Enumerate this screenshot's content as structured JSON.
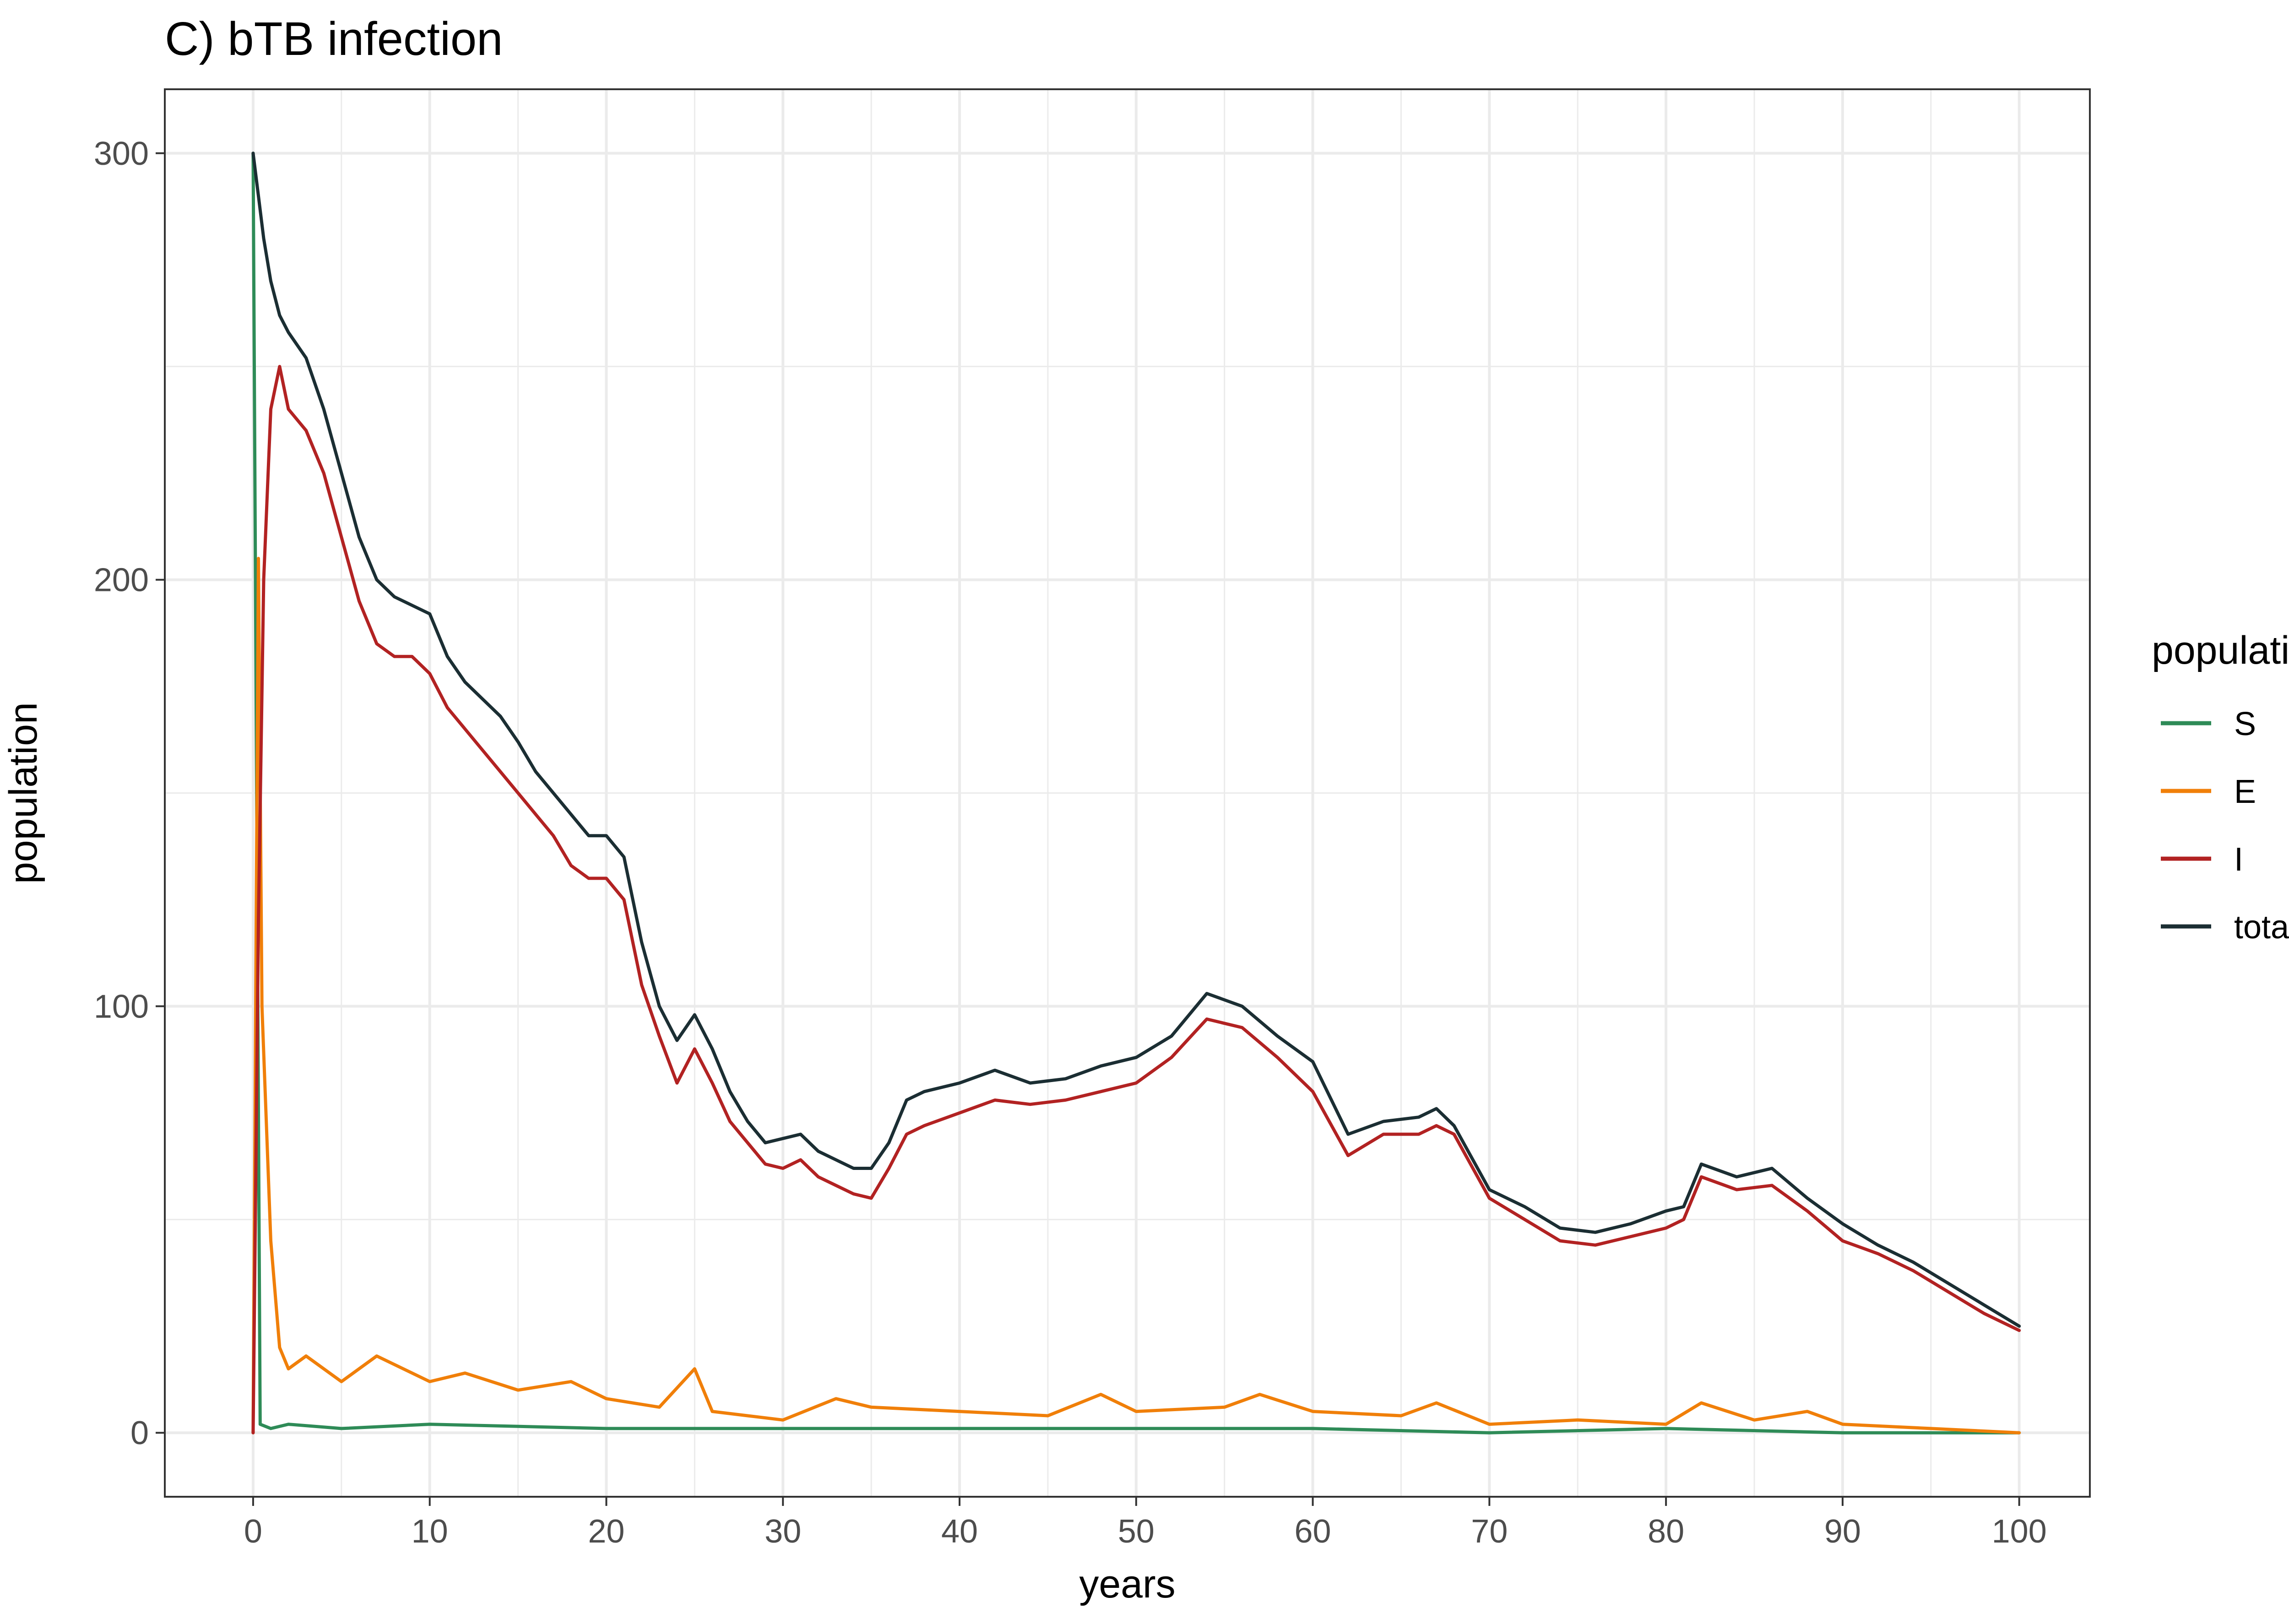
{
  "chart_data": {
    "type": "line",
    "title": "C) bTB infection",
    "xlabel": "years",
    "ylabel": "population",
    "xlim": [
      -5,
      104
    ],
    "ylim": [
      -15,
      315
    ],
    "x_ticks": [
      0,
      10,
      20,
      30,
      40,
      50,
      60,
      70,
      80,
      90,
      100
    ],
    "y_ticks": [
      0,
      100,
      200,
      300
    ],
    "x_tick_labels": [
      "0",
      "10",
      "20",
      "30",
      "40",
      "50",
      "60",
      "70",
      "80",
      "90",
      "100"
    ],
    "y_tick_labels": [
      "0",
      "100",
      "200",
      "300"
    ],
    "grid": true,
    "legend": {
      "title": "population",
      "position": "right"
    },
    "series": [
      {
        "name": "S",
        "color": "#2e8b57",
        "x": [
          0,
          0.2,
          0.4,
          1,
          2,
          5,
          10,
          20,
          30,
          40,
          50,
          60,
          70,
          80,
          90,
          100
        ],
        "y": [
          300,
          150,
          2,
          1,
          2,
          1,
          2,
          1,
          1,
          1,
          1,
          1,
          0,
          1,
          0,
          0
        ]
      },
      {
        "name": "E",
        "color": "#f07f09",
        "x": [
          0,
          0.3,
          0.5,
          1,
          1.5,
          2,
          3,
          5,
          7,
          10,
          12,
          15,
          18,
          20,
          23,
          25,
          26,
          28,
          30,
          33,
          35,
          40,
          45,
          48,
          50,
          55,
          57,
          60,
          65,
          67,
          70,
          75,
          80,
          82,
          85,
          88,
          90,
          95,
          100
        ],
        "y": [
          0,
          205,
          100,
          45,
          20,
          15,
          18,
          12,
          18,
          12,
          14,
          10,
          12,
          8,
          6,
          15,
          5,
          4,
          3,
          8,
          6,
          5,
          4,
          9,
          5,
          6,
          9,
          5,
          4,
          7,
          2,
          3,
          2,
          7,
          3,
          5,
          2,
          1,
          0
        ]
      },
      {
        "name": "I",
        "color": "#b22222",
        "x": [
          0,
          0.3,
          0.6,
          1,
          1.5,
          2,
          3,
          4,
          5,
          6,
          7,
          8,
          9,
          10,
          11,
          12,
          13,
          14,
          15,
          16,
          17,
          18,
          19,
          20,
          21,
          22,
          23,
          24,
          25,
          26,
          27,
          28,
          29,
          30,
          31,
          32,
          33,
          34,
          35,
          36,
          37,
          38,
          40,
          42,
          44,
          46,
          48,
          50,
          52,
          54,
          56,
          58,
          60,
          62,
          64,
          66,
          67,
          68,
          70,
          72,
          74,
          76,
          78,
          80,
          81,
          82,
          84,
          86,
          88,
          90,
          92,
          94,
          96,
          98,
          100
        ],
        "y": [
          0,
          120,
          200,
          240,
          250,
          240,
          235,
          225,
          210,
          195,
          185,
          182,
          182,
          178,
          170,
          165,
          160,
          155,
          150,
          145,
          140,
          133,
          130,
          130,
          125,
          105,
          93,
          82,
          90,
          82,
          73,
          68,
          63,
          62,
          64,
          60,
          58,
          56,
          55,
          62,
          70,
          72,
          75,
          78,
          77,
          78,
          80,
          82,
          88,
          97,
          95,
          88,
          80,
          65,
          70,
          70,
          72,
          70,
          55,
          50,
          45,
          44,
          46,
          48,
          50,
          60,
          57,
          58,
          52,
          45,
          42,
          38,
          33,
          28,
          24
        ]
      },
      {
        "name": "total",
        "color": "#1b2e33",
        "x": [
          0,
          0.3,
          0.6,
          1,
          1.5,
          2,
          3,
          4,
          5,
          6,
          7,
          8,
          9,
          10,
          11,
          12,
          13,
          14,
          15,
          16,
          17,
          18,
          19,
          20,
          21,
          22,
          23,
          24,
          25,
          26,
          27,
          28,
          29,
          30,
          31,
          32,
          33,
          34,
          35,
          36,
          37,
          38,
          40,
          42,
          44,
          46,
          48,
          50,
          52,
          54,
          56,
          58,
          60,
          62,
          64,
          66,
          67,
          68,
          70,
          72,
          74,
          76,
          78,
          80,
          81,
          82,
          84,
          86,
          88,
          90,
          92,
          94,
          96,
          98,
          100
        ],
        "y": [
          300,
          290,
          280,
          270,
          262,
          258,
          252,
          240,
          225,
          210,
          200,
          196,
          194,
          192,
          182,
          176,
          172,
          168,
          162,
          155,
          150,
          145,
          140,
          140,
          135,
          115,
          100,
          92,
          98,
          90,
          80,
          73,
          68,
          69,
          70,
          66,
          64,
          62,
          62,
          68,
          78,
          80,
          82,
          85,
          82,
          83,
          86,
          88,
          93,
          103,
          100,
          93,
          87,
          70,
          73,
          74,
          76,
          72,
          57,
          53,
          48,
          47,
          49,
          52,
          53,
          63,
          60,
          62,
          55,
          49,
          44,
          40,
          35,
          30,
          25
        ]
      }
    ]
  }
}
